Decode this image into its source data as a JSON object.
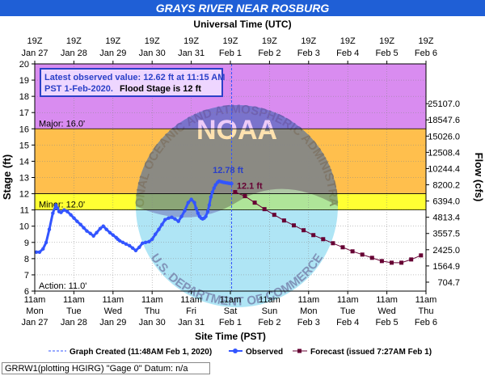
{
  "title": "GRAYS RIVER NEAR ROSBURG",
  "top_axis_title": "Universal Time (UTC)",
  "bottom_axis_title": "Site Time (PST)",
  "footer_text": "GRRW1(plotting HGIRG) \"Gage 0\" Datum: n/a",
  "info_box": {
    "line1": "Latest observed value: 12.62 ft at 11:15 AM",
    "line2": "PST 1-Feb-2020.",
    "line2b": "Flood Stage is 12 ft"
  },
  "legend": {
    "created": "Graph Created (11:48AM Feb 1, 2020)",
    "observed": "Observed",
    "forecast": "Forecast (issued 7:27AM Feb 1)"
  },
  "watermark": {
    "noaa": "NOAA",
    "top_text": "NATIONAL OCEANIC AND ATMOSPHERIC ADMINISTRATION",
    "bottom_text": "U.S. DEPARTMENT OF COMMERCE"
  },
  "colors": {
    "title_bg": "#1f5fd6",
    "major_band": "#d98cf0",
    "moderate_band": "#ffbf4d",
    "minor_band": "#ffff33",
    "observed": "#3355ff",
    "forecast": "#660033",
    "peak_label": "#2b40c8"
  },
  "chart_data": {
    "type": "line",
    "ylabel": "Stage (ft)",
    "y2label": "Flow (cfs)",
    "ylim": [
      6,
      20
    ],
    "yticks": [
      6,
      7,
      8,
      9,
      10,
      11,
      12,
      13,
      14,
      15,
      16,
      17,
      18,
      19,
      20
    ],
    "y2ticks": [
      {
        "stage": 6.55,
        "label": "704.7"
      },
      {
        "stage": 7.55,
        "label": "1564.9"
      },
      {
        "stage": 8.55,
        "label": "2425.0"
      },
      {
        "stage": 9.55,
        "label": "3557.5"
      },
      {
        "stage": 10.55,
        "label": "4813.4"
      },
      {
        "stage": 11.55,
        "label": "6394.0"
      },
      {
        "stage": 12.55,
        "label": "8200.2"
      },
      {
        "stage": 13.55,
        "label": "10244.4"
      },
      {
        "stage": 14.55,
        "label": "12508.4"
      },
      {
        "stage": 15.55,
        "label": "15026.0"
      },
      {
        "stage": 16.55,
        "label": "18547.6"
      },
      {
        "stage": 17.55,
        "label": "25107.0"
      }
    ],
    "x_unit": "days since Jan 27 00:00 PST",
    "xlim": [
      0.4583,
      10.4583
    ],
    "bottom_ticks": [
      {
        "l1": "11am",
        "l2": "Mon",
        "l3": "Jan 27"
      },
      {
        "l1": "11am",
        "l2": "Tue",
        "l3": "Jan 28"
      },
      {
        "l1": "11am",
        "l2": "Wed",
        "l3": "Jan 29"
      },
      {
        "l1": "11am",
        "l2": "Thu",
        "l3": "Jan 30"
      },
      {
        "l1": "11am",
        "l2": "Fri",
        "l3": "Jan 31"
      },
      {
        "l1": "11am",
        "l2": "Sat",
        "l3": "Feb 1"
      },
      {
        "l1": "11am",
        "l2": "Sun",
        "l3": "Feb 2"
      },
      {
        "l1": "11am",
        "l2": "Mon",
        "l3": "Feb 3"
      },
      {
        "l1": "11am",
        "l2": "Tue",
        "l3": "Feb 4"
      },
      {
        "l1": "11am",
        "l2": "Wed",
        "l3": "Feb 5"
      },
      {
        "l1": "11am",
        "l2": "Thu",
        "l3": "Feb 6"
      }
    ],
    "top_ticks": [
      {
        "l1": "19Z",
        "l2": "Jan 27"
      },
      {
        "l1": "19Z",
        "l2": "Jan 28"
      },
      {
        "l1": "19Z",
        "l2": "Jan 29"
      },
      {
        "l1": "19Z",
        "l2": "Jan 30"
      },
      {
        "l1": "19Z",
        "l2": "Jan 31"
      },
      {
        "l1": "19Z",
        "l2": "Feb 1"
      },
      {
        "l1": "19Z",
        "l2": "Feb 2"
      },
      {
        "l1": "19Z",
        "l2": "Feb 3"
      },
      {
        "l1": "19Z",
        "l2": "Feb 4"
      },
      {
        "l1": "19Z",
        "l2": "Feb 5"
      },
      {
        "l1": "19Z",
        "l2": "Feb 6"
      }
    ],
    "bands": [
      {
        "name": "Major",
        "label": "Major: 16.0'",
        "from": 16,
        "to": 20,
        "color": "#d98cf0"
      },
      {
        "name": "Moderate",
        "label": "",
        "from": 12,
        "to": 16,
        "color": "#ffbf4d"
      },
      {
        "name": "Minor",
        "label": "Minor: 12.0'",
        "from": 11,
        "to": 12,
        "color": "#ffff33"
      },
      {
        "name": "Action",
        "label": "Action: 11.0'",
        "from": 6,
        "to": 11,
        "color": "#ffffff"
      }
    ],
    "graph_created_x": 5.49,
    "peak_label": {
      "text": "12.78 ft",
      "x": 5.44,
      "y": 12.78
    },
    "forecast_label": {
      "text": "12.1 ft",
      "x": 5.58,
      "y": 12.1
    },
    "series": [
      {
        "name": "Observed",
        "x": [
          0.5,
          0.58,
          0.67,
          0.75,
          0.83,
          0.92,
          1.0,
          1.04,
          1.08,
          1.13,
          1.21,
          1.29,
          1.38,
          1.46,
          1.54,
          1.63,
          1.71,
          1.79,
          1.88,
          1.96,
          2.04,
          2.13,
          2.21,
          2.29,
          2.38,
          2.46,
          2.54,
          2.58,
          2.63,
          2.71,
          2.79,
          2.88,
          2.96,
          3.04,
          3.13,
          3.21,
          3.29,
          3.38,
          3.46,
          3.54,
          3.63,
          3.71,
          3.79,
          3.88,
          3.96,
          4.04,
          4.13,
          4.21,
          4.29,
          4.38,
          4.46,
          4.54,
          4.58,
          4.63,
          4.67,
          4.71,
          4.75,
          4.79,
          4.83,
          4.88,
          4.92,
          4.96,
          5.0,
          5.04,
          5.08,
          5.13,
          5.17,
          5.21,
          5.25,
          5.29,
          5.33,
          5.38,
          5.42,
          5.46,
          5.49
        ],
        "y": [
          8.4,
          8.4,
          8.6,
          9.0,
          9.8,
          10.8,
          11.3,
          11.1,
          10.9,
          10.85,
          11.0,
          10.9,
          10.7,
          10.5,
          10.3,
          10.1,
          9.9,
          9.7,
          9.55,
          9.4,
          9.6,
          9.85,
          10.0,
          9.8,
          9.6,
          9.45,
          9.3,
          9.2,
          9.1,
          9.0,
          8.9,
          8.8,
          8.65,
          8.5,
          8.7,
          8.95,
          9.0,
          9.05,
          9.2,
          9.5,
          9.8,
          10.1,
          10.4,
          10.5,
          10.55,
          10.45,
          10.3,
          10.6,
          10.95,
          11.45,
          11.65,
          11.45,
          11.1,
          10.8,
          10.6,
          10.5,
          10.45,
          10.5,
          10.6,
          10.9,
          11.3,
          11.8,
          12.1,
          12.35,
          12.55,
          12.7,
          12.78,
          12.75,
          12.72,
          12.7,
          12.68,
          12.66,
          12.64,
          12.63,
          12.62
        ]
      },
      {
        "name": "Forecast (issued 7:27AM Feb 1)",
        "x": [
          5.58,
          5.83,
          6.08,
          6.33,
          6.58,
          6.83,
          7.08,
          7.33,
          7.58,
          7.83,
          8.08,
          8.33,
          8.58,
          8.83,
          9.08,
          9.33,
          9.58,
          9.83,
          10.08,
          10.33
        ],
        "y": [
          12.1,
          11.85,
          11.45,
          11.05,
          10.7,
          10.35,
          10.05,
          9.75,
          9.45,
          9.2,
          8.95,
          8.7,
          8.45,
          8.25,
          8.05,
          7.85,
          7.75,
          7.75,
          7.95,
          8.2
        ]
      }
    ]
  }
}
